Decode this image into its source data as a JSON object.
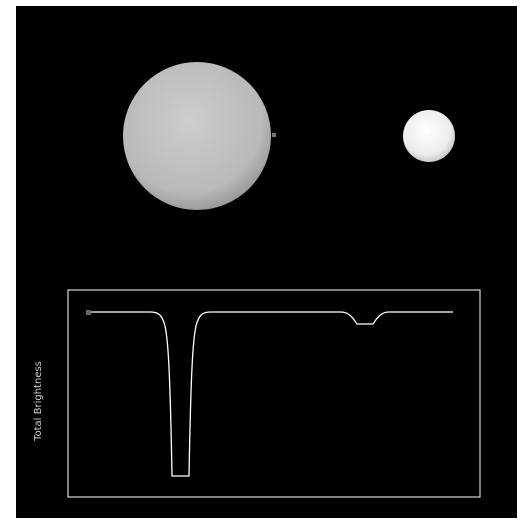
{
  "simulation": {
    "light_curve": {
      "ylabel": "Total Brightness",
      "stroke_color": "#ffffff"
    },
    "bodies": [
      {
        "name": "large-star",
        "color": "#c8c8c8"
      },
      {
        "name": "small-star",
        "color": "#f2f2f2"
      }
    ],
    "colors": {
      "background": "#000000",
      "frame": "#ffffff",
      "marker": "#666666"
    }
  }
}
